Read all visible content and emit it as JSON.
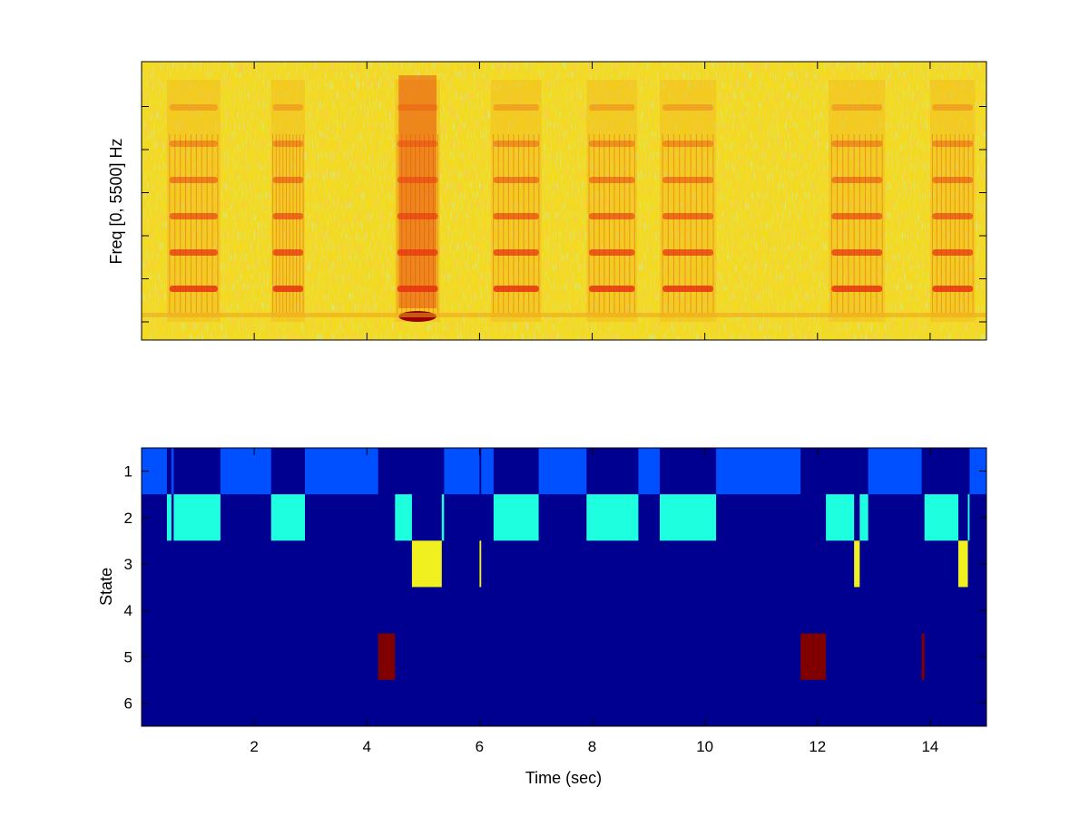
{
  "chart_data": [
    {
      "type": "heatmap",
      "title": "",
      "xlabel": "",
      "ylabel": "Freq [0, 5500] Hz",
      "xlim": [
        0,
        15
      ],
      "colormap": "hot-yellow spectrogram",
      "colors": {
        "background": "#f2dc1c",
        "low": "#5fe6b4",
        "mid": "#f5b81b",
        "high": "#e63211",
        "peak": "#9a0000"
      },
      "energy_bursts_sec": [
        {
          "start": 0.45,
          "end": 1.4,
          "note": "low harmonic stack"
        },
        {
          "start": 2.3,
          "end": 2.9,
          "note": "low harmonic stack"
        },
        {
          "start": 4.5,
          "end": 5.3,
          "note": "strong broadband"
        },
        {
          "start": 6.2,
          "end": 7.1,
          "note": "down-sweeping harmonics"
        },
        {
          "start": 7.9,
          "end": 8.8,
          "note": "harmonic bands"
        },
        {
          "start": 9.2,
          "end": 10.2,
          "note": "harmonic bands"
        },
        {
          "start": 12.2,
          "end": 13.2,
          "note": "wavy harmonics"
        },
        {
          "start": 14.0,
          "end": 14.8,
          "note": "curved harmonics"
        }
      ]
    },
    {
      "type": "heatmap",
      "title": "",
      "xlabel": "Time (sec)",
      "ylabel": "State",
      "xlim": [
        0,
        15
      ],
      "x_ticks": [
        2,
        4,
        6,
        8,
        10,
        12,
        14
      ],
      "y_categories": [
        1,
        2,
        3,
        4,
        5,
        6
      ],
      "state_colors": {
        "1": "#0050ff",
        "2": "#1effdf",
        "3": "#f0f020",
        "5": "#800000",
        "background": "#000090"
      },
      "segments": [
        {
          "state": 1,
          "start": 0.0,
          "end": 0.45
        },
        {
          "state": 2,
          "start": 0.45,
          "end": 0.53
        },
        {
          "state": 1,
          "start": 0.53,
          "end": 0.57
        },
        {
          "state": 2,
          "start": 0.57,
          "end": 1.4
        },
        {
          "state": 1,
          "start": 1.4,
          "end": 2.3
        },
        {
          "state": 2,
          "start": 2.3,
          "end": 2.9
        },
        {
          "state": 1,
          "start": 2.9,
          "end": 4.2
        },
        {
          "state": 5,
          "start": 4.2,
          "end": 4.5
        },
        {
          "state": 2,
          "start": 4.5,
          "end": 4.8
        },
        {
          "state": 3,
          "start": 4.8,
          "end": 5.33
        },
        {
          "state": 2,
          "start": 5.33,
          "end": 5.37
        },
        {
          "state": 1,
          "start": 5.37,
          "end": 6.0
        },
        {
          "state": 3,
          "start": 6.0,
          "end": 6.03
        },
        {
          "state": 1,
          "start": 6.03,
          "end": 6.25
        },
        {
          "state": 2,
          "start": 6.25,
          "end": 7.05
        },
        {
          "state": 1,
          "start": 7.05,
          "end": 7.9
        },
        {
          "state": 2,
          "start": 7.9,
          "end": 8.82
        },
        {
          "state": 1,
          "start": 8.82,
          "end": 9.2
        },
        {
          "state": 2,
          "start": 9.2,
          "end": 10.2
        },
        {
          "state": 1,
          "start": 10.2,
          "end": 11.7
        },
        {
          "state": 5,
          "start": 11.7,
          "end": 12.15
        },
        {
          "state": 2,
          "start": 12.15,
          "end": 12.65
        },
        {
          "state": 3,
          "start": 12.65,
          "end": 12.75
        },
        {
          "state": 2,
          "start": 12.75,
          "end": 12.9
        },
        {
          "state": 1,
          "start": 12.9,
          "end": 13.85
        },
        {
          "state": 5,
          "start": 13.85,
          "end": 13.9
        },
        {
          "state": 2,
          "start": 13.9,
          "end": 14.5
        },
        {
          "state": 3,
          "start": 14.5,
          "end": 14.67
        },
        {
          "state": 2,
          "start": 14.67,
          "end": 14.7
        },
        {
          "state": 1,
          "start": 14.7,
          "end": 15.0
        }
      ]
    }
  ]
}
